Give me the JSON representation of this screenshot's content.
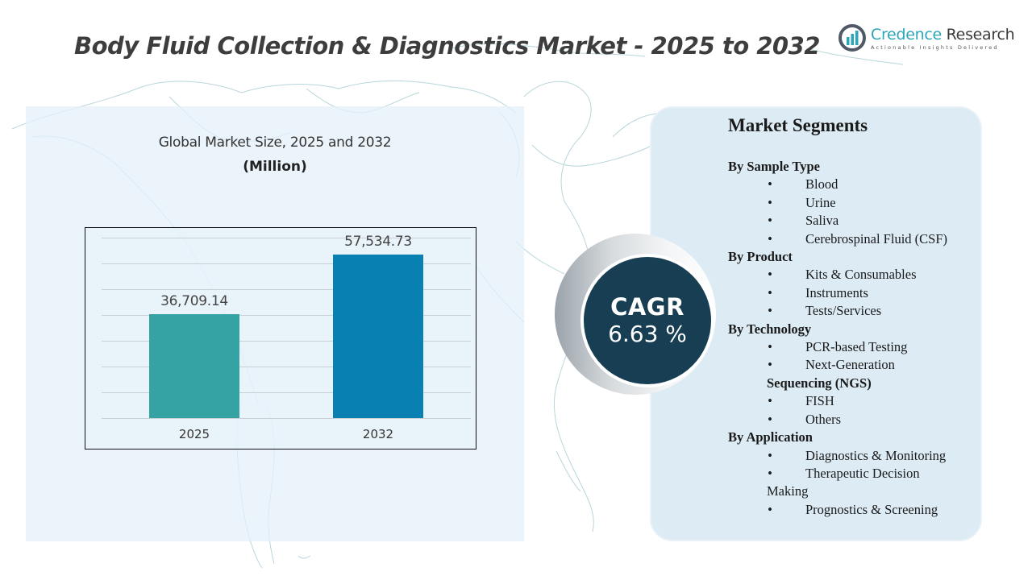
{
  "header": {
    "title": "Body Fluid Collection & Diagnostics Market - 2025 to 2032"
  },
  "logo": {
    "name_part1": "Credence",
    "name_part2": " Research",
    "tagline": "Actionable Insights Delivered",
    "icon": "bar-chart-circle-icon",
    "brand_color": "#2aa6b8"
  },
  "left_panel": {
    "chart_title": "Global Market Size,  2025 and 2032",
    "chart_unit": "(Million)"
  },
  "cagr": {
    "label": "CAGR",
    "value": "6.63 %",
    "circle_color": "#173e52"
  },
  "segments": {
    "title": "Market Segments",
    "groups": [
      {
        "title": "By Sample Type",
        "items": [
          "Blood",
          "Urine",
          "Saliva",
          "Cerebrospinal Fluid (CSF)"
        ]
      },
      {
        "title": "By Product",
        "items": [
          "Kits & Consumables",
          "Instruments",
          "Tests/Services"
        ]
      },
      {
        "title": "By Technology",
        "items": [
          "PCR-based Testing",
          "Next-Generation",
          "FISH",
          "Others"
        ],
        "continuation_after_item_1": "Sequencing (NGS)"
      },
      {
        "title": "By Application",
        "items": [
          "Diagnostics & Monitoring",
          "Therapeutic Decision",
          "Prognostics & Screening"
        ],
        "continuation_after_item_1": "Making"
      }
    ]
  },
  "chart_data": {
    "type": "bar",
    "title": "Global Market Size,  2025 and 2032",
    "subtitle": "(Million)",
    "categories": [
      "2025",
      "2032"
    ],
    "values": [
      36709.14,
      57534.73
    ],
    "value_labels": [
      "36,709.14",
      "57,534.73"
    ],
    "colors": [
      "#35a3a3",
      "#0880b1"
    ],
    "xlabel": "",
    "ylabel": "",
    "ylim": [
      0,
      67000
    ],
    "grid": true,
    "legend": "none"
  }
}
